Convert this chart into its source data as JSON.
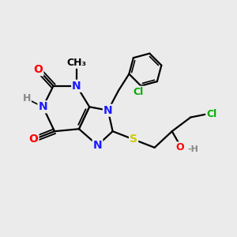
{
  "bg_color": "#ebebeb",
  "bond_color": "#000000",
  "bond_width": 1.6,
  "atom_colors": {
    "N": "#1a1aff",
    "O": "#ff0000",
    "S": "#cccc00",
    "Cl": "#00aa00",
    "H": "#888888",
    "C": "#000000"
  },
  "figsize": [
    3.0,
    3.0
  ],
  "dpi": 100
}
